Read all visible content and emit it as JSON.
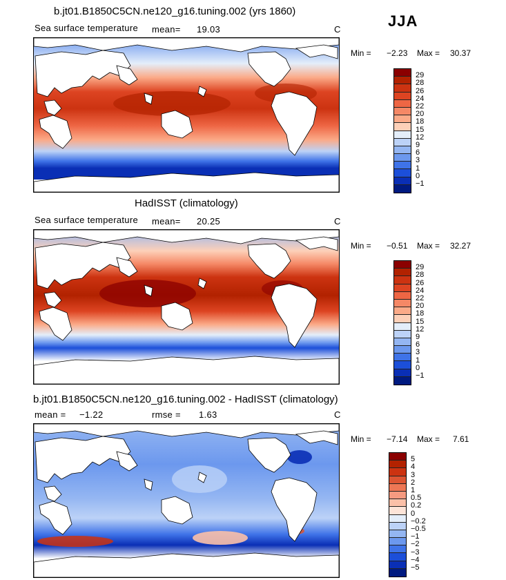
{
  "season": "JJA",
  "panels": [
    {
      "title": "b.jt01.B1850C5CN.ne120_g16.tuning.002 (yrs 1860)",
      "variable": "Sea surface temperature",
      "stat1_label": "mean=",
      "stat1_value": "19.03",
      "units": "C",
      "minmax_label": "Min =",
      "min": "−2.23",
      "max_label": "Max =",
      "max": "30.37",
      "colorbar": {
        "labels": [
          "29",
          "28",
          "26",
          "24",
          "22",
          "20",
          "18",
          "15",
          "12",
          "9",
          "6",
          "3",
          "1",
          "0",
          "−1"
        ],
        "colors": [
          "#8b0000",
          "#b22200",
          "#cc3311",
          "#dd4422",
          "#ee6644",
          "#f58866",
          "#fbaa88",
          "#fdd0b8",
          "#e4eefa",
          "#bcd2f7",
          "#94b6f2",
          "#6c98ee",
          "#3f73e8",
          "#1c4fd9",
          "#0a2fb5",
          "#001a80"
        ]
      }
    },
    {
      "title": "HadISST (climatology)",
      "variable": "Sea surface temperature",
      "stat1_label": "mean=",
      "stat1_value": "20.25",
      "units": "C",
      "minmax_label": "Min =",
      "min": "−0.51",
      "max_label": "Max =",
      "max": "32.27",
      "colorbar": {
        "labels": [
          "29",
          "28",
          "26",
          "24",
          "22",
          "20",
          "18",
          "15",
          "12",
          "9",
          "6",
          "3",
          "1",
          "0",
          "−1"
        ],
        "colors": [
          "#8b0000",
          "#b22200",
          "#cc3311",
          "#dd4422",
          "#ee6644",
          "#f58866",
          "#fbaa88",
          "#fdd0b8",
          "#e4eefa",
          "#bcd2f7",
          "#94b6f2",
          "#6c98ee",
          "#3f73e8",
          "#1c4fd9",
          "#0a2fb5",
          "#001a80"
        ]
      }
    },
    {
      "title": "b.jt01.B1850C5CN.ne120_g16.tuning.002 - HadISST (climatology)",
      "stat1_label": "mean =",
      "stat1_value": "−1.22",
      "stat2_label": "rmse =",
      "stat2_value": "1.63",
      "units": "C",
      "minmax_label": "Min =",
      "min": "−7.14",
      "max_label": "Max =",
      "max": "7.61",
      "colorbar": {
        "labels": [
          "5",
          "4",
          "3",
          "2",
          "1",
          "0.5",
          "0.2",
          "0",
          "−0.2",
          "−0.5",
          "−1",
          "−2",
          "−3",
          "−4",
          "−5"
        ],
        "colors": [
          "#8b0000",
          "#b22200",
          "#cc3311",
          "#dd5533",
          "#ee7755",
          "#f59a80",
          "#fbc0a8",
          "#fde4d8",
          "#e4eefa",
          "#bcd2f7",
          "#94b6f2",
          "#6c98ee",
          "#3f73e8",
          "#1c4fd9",
          "#0a2fb5",
          "#001a80"
        ]
      }
    }
  ]
}
